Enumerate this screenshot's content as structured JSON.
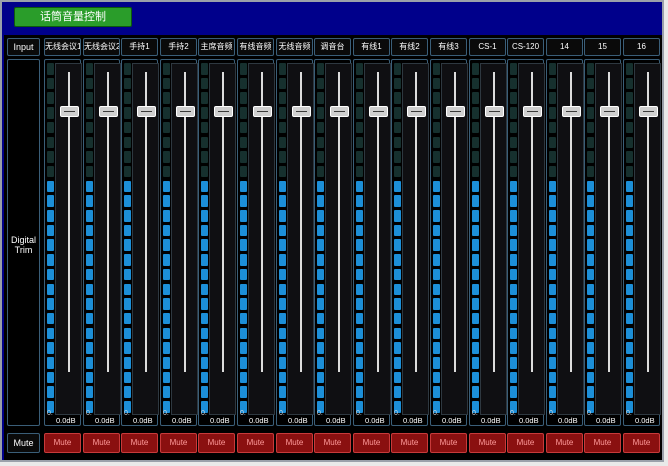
{
  "window": {
    "title": "话筒音量控制"
  },
  "row_labels": {
    "input": "Input",
    "digital_trim": "Digital Trim",
    "mute": "Mute"
  },
  "channels": [
    {
      "name": "无线会议1",
      "level_db": "0.0dB",
      "meter_zero": "0.",
      "mute_label": "Mute",
      "meter_level": 0.66
    },
    {
      "name": "无线会议2",
      "level_db": "0.0dB",
      "meter_zero": "0.",
      "mute_label": "Mute",
      "meter_level": 0.66
    },
    {
      "name": "手持1",
      "level_db": "0.0dB",
      "meter_zero": "0.",
      "mute_label": "Mute",
      "meter_level": 0.66
    },
    {
      "name": "手持2",
      "level_db": "0.0dB",
      "meter_zero": "0.",
      "mute_label": "Mute",
      "meter_level": 0.66
    },
    {
      "name": "主席音频",
      "level_db": "0.0dB",
      "meter_zero": "0.",
      "mute_label": "Mute",
      "meter_level": 0.66
    },
    {
      "name": "有线音频",
      "level_db": "0.0dB",
      "meter_zero": "0.",
      "mute_label": "Mute",
      "meter_level": 0.66
    },
    {
      "name": "无线音频",
      "level_db": "0.0dB",
      "meter_zero": "0.",
      "mute_label": "Mute",
      "meter_level": 0.66
    },
    {
      "name": "调音台",
      "level_db": "0.0dB",
      "meter_zero": "0.",
      "mute_label": "Mute",
      "meter_level": 0.66
    },
    {
      "name": "有线1",
      "level_db": "0.0dB",
      "meter_zero": "0.",
      "mute_label": "Mute",
      "meter_level": 0.66
    },
    {
      "name": "有线2",
      "level_db": "0.0dB",
      "meter_zero": "0.",
      "mute_label": "Mute",
      "meter_level": 0.66
    },
    {
      "name": "有线3",
      "level_db": "0.0dB",
      "meter_zero": "0.",
      "mute_label": "Mute",
      "meter_level": 0.66
    },
    {
      "name": "CS-1",
      "level_db": "0.0dB",
      "meter_zero": "0.",
      "mute_label": "Mute",
      "meter_level": 0.66
    },
    {
      "name": "CS-120",
      "level_db": "0.0dB",
      "meter_zero": "0.",
      "mute_label": "Mute",
      "meter_level": 0.66
    },
    {
      "name": "14",
      "level_db": "0.0dB",
      "meter_zero": "0.",
      "mute_label": "Mute",
      "meter_level": 0.66
    },
    {
      "name": "15",
      "level_db": "0.0dB",
      "meter_zero": "0.",
      "mute_label": "Mute",
      "meter_level": 0.66
    },
    {
      "name": "16",
      "level_db": "0.0dB",
      "meter_zero": "0.",
      "mute_label": "Mute",
      "meter_level": 0.66
    }
  ],
  "colors": {
    "title_button": "#2a9d2a",
    "background": "#00008b",
    "meter_active": "#1c8fd8",
    "meter_inactive": "#16302e",
    "mute_button": "#8a1010"
  }
}
